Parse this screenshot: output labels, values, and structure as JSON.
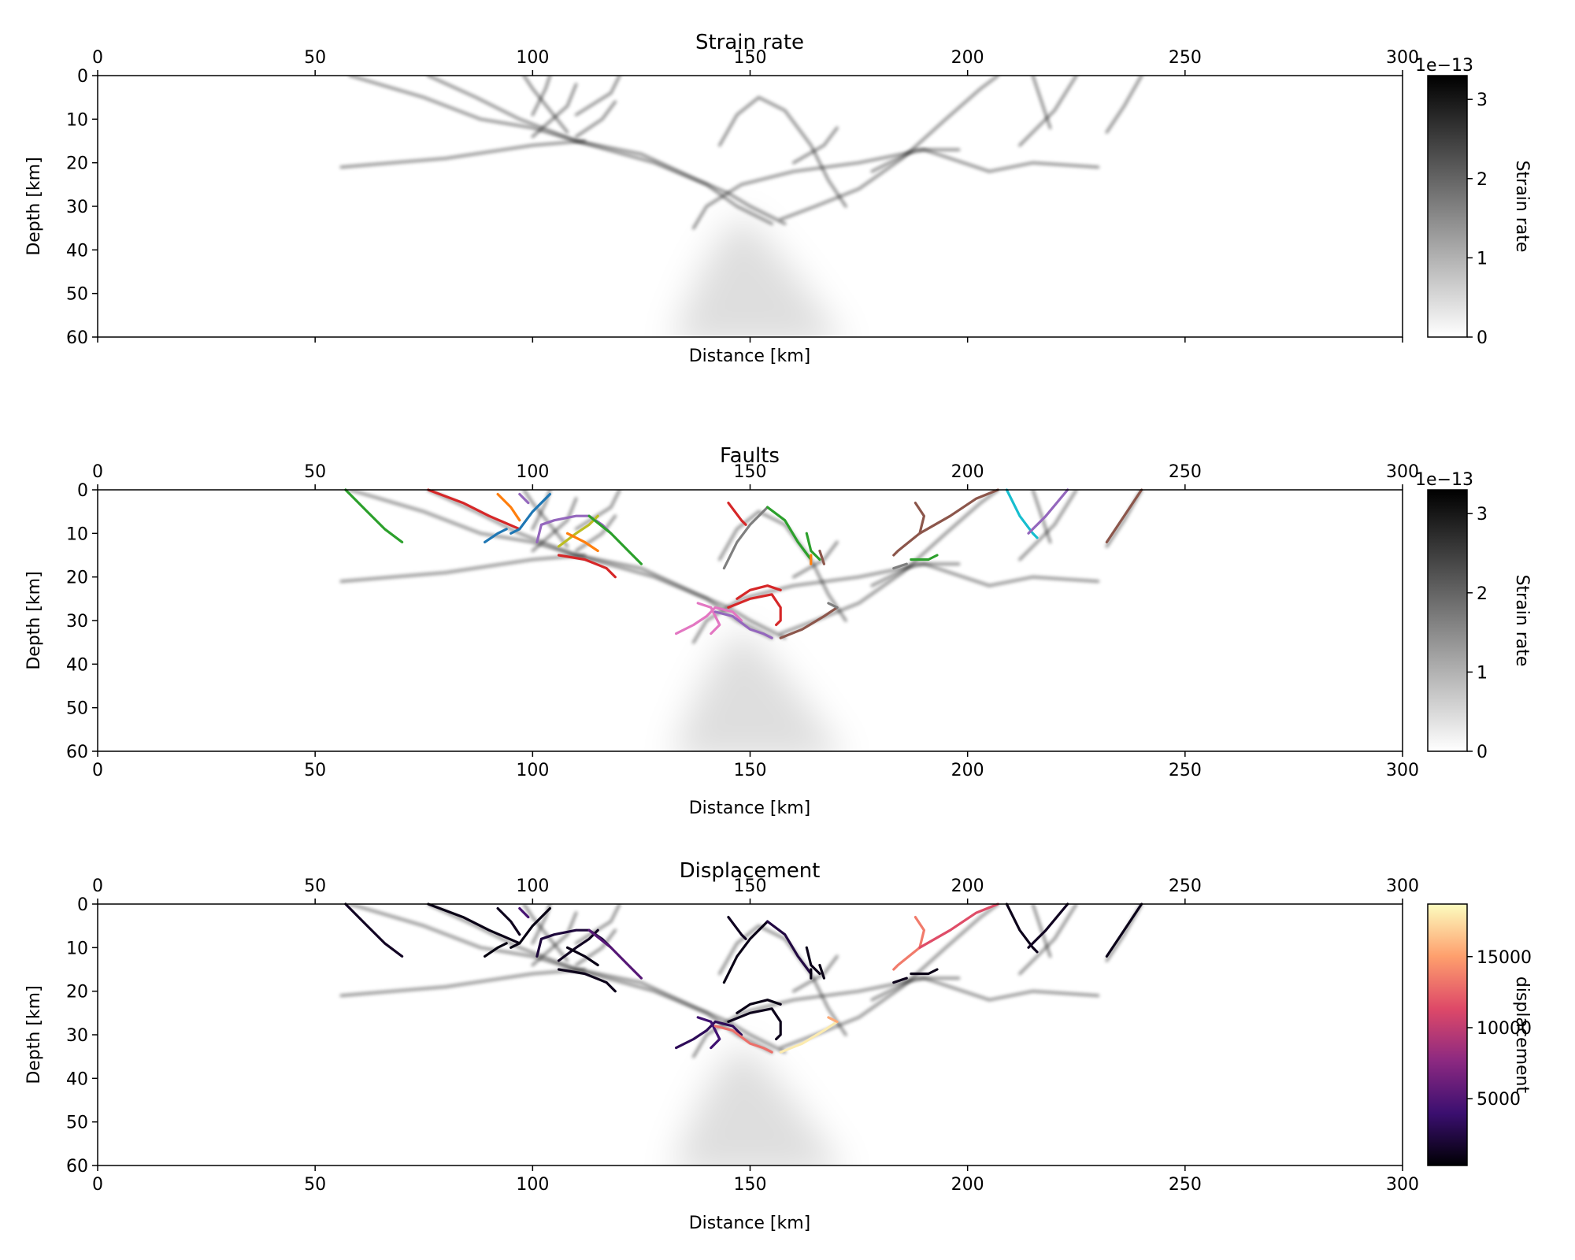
{
  "chart_data": [
    {
      "type": "heatmap",
      "title": "Strain rate",
      "xlabel": "Distance [km]",
      "ylabel": "Depth [km]",
      "xlim": [
        0,
        300
      ],
      "ylim": [
        60,
        0
      ],
      "xticks": [
        0,
        50,
        100,
        150,
        200,
        250,
        300
      ],
      "yticks": [
        0,
        10,
        20,
        30,
        40,
        50,
        60
      ],
      "colorbar": {
        "label": "Strain rate",
        "offset_text": "1e−13",
        "ticks": [
          0,
          1,
          2,
          3
        ],
        "range": [
          0,
          3.3
        ],
        "cmap": "Greys"
      },
      "strain_bands": [
        [
          [
            58,
            0
          ],
          [
            75,
            5
          ],
          [
            88,
            10
          ],
          [
            100,
            12
          ],
          [
            110,
            15
          ],
          [
            125,
            18
          ],
          [
            138,
            24
          ],
          [
            145,
            27
          ],
          [
            150,
            30
          ],
          [
            158,
            34
          ]
        ],
        [
          [
            76,
            0
          ],
          [
            87,
            5
          ],
          [
            97,
            10
          ],
          [
            110,
            15
          ],
          [
            128,
            20
          ],
          [
            140,
            25
          ],
          [
            147,
            30
          ],
          [
            155,
            34
          ]
        ],
        [
          [
            98,
            0
          ],
          [
            100,
            3
          ],
          [
            108,
            13
          ]
        ],
        [
          [
            104,
            0
          ],
          [
            103,
            3
          ],
          [
            100,
            9
          ]
        ],
        [
          [
            110,
            2
          ],
          [
            108,
            7
          ],
          [
            100,
            14
          ]
        ],
        [
          [
            120,
            0
          ],
          [
            118,
            4
          ],
          [
            110,
            9
          ]
        ],
        [
          [
            56,
            21
          ],
          [
            80,
            19
          ],
          [
            100,
            16
          ],
          [
            112,
            15
          ]
        ],
        [
          [
            119,
            6
          ],
          [
            116,
            10
          ],
          [
            110,
            14
          ]
        ],
        [
          [
            143,
            16
          ],
          [
            147,
            9
          ],
          [
            152,
            5
          ],
          [
            158,
            8
          ],
          [
            164,
            16
          ],
          [
            168,
            24
          ],
          [
            172,
            30
          ]
        ],
        [
          [
            137,
            35
          ],
          [
            140,
            30
          ],
          [
            148,
            25
          ],
          [
            160,
            22
          ],
          [
            175,
            20
          ],
          [
            190,
            17
          ],
          [
            205,
            22
          ],
          [
            215,
            20
          ],
          [
            230,
            21
          ]
        ],
        [
          [
            157,
            33
          ],
          [
            165,
            30
          ],
          [
            175,
            26
          ],
          [
            185,
            19
          ],
          [
            195,
            10
          ],
          [
            203,
            3
          ],
          [
            207,
            0
          ]
        ],
        [
          [
            178,
            22
          ],
          [
            188,
            17
          ],
          [
            198,
            17
          ]
        ],
        [
          [
            215,
            0
          ],
          [
            217,
            6
          ],
          [
            219,
            12
          ]
        ],
        [
          [
            225,
            0
          ],
          [
            220,
            8
          ],
          [
            212,
            16
          ]
        ],
        [
          [
            240,
            0
          ],
          [
            236,
            7
          ],
          [
            232,
            13
          ]
        ],
        [
          [
            160,
            20
          ],
          [
            167,
            16
          ],
          [
            170,
            12
          ]
        ]
      ]
    },
    {
      "type": "heatmap",
      "title": "Faults",
      "xlabel": "Distance [km]",
      "ylabel": "Depth [km]",
      "xlim": [
        0,
        300
      ],
      "ylim": [
        60,
        0
      ],
      "xticks": [
        0,
        50,
        100,
        150,
        200,
        250,
        300
      ],
      "yticks": [
        0,
        10,
        20,
        30,
        40,
        50,
        60
      ],
      "colorbar": {
        "label": "Strain rate",
        "offset_text": "1e−13",
        "ticks": [
          0,
          1,
          2,
          3
        ],
        "range": [
          0,
          3.3
        ],
        "cmap": "Greys"
      },
      "faults": [
        {
          "color": "#2ca02c",
          "points": [
            [
              57,
              0
            ],
            [
              62,
              5
            ],
            [
              66,
              9
            ],
            [
              70,
              12
            ]
          ]
        },
        {
          "color": "#d62728",
          "points": [
            [
              76,
              0
            ],
            [
              84,
              3
            ],
            [
              90,
              6
            ],
            [
              97,
              9
            ]
          ]
        },
        {
          "color": "#ff7f0e",
          "points": [
            [
              92,
              1
            ],
            [
              95,
              4
            ],
            [
              97,
              7
            ]
          ]
        },
        {
          "color": "#1f77b4",
          "points": [
            [
              104,
              1
            ],
            [
              100,
              5
            ],
            [
              97,
              9
            ],
            [
              95,
              10
            ]
          ]
        },
        {
          "color": "#1f77b4",
          "points": [
            [
              89,
              12
            ],
            [
              92,
              10
            ],
            [
              94,
              9
            ]
          ]
        },
        {
          "color": "#9467bd",
          "points": [
            [
              97,
              1
            ],
            [
              99,
              3
            ]
          ]
        },
        {
          "color": "#9467bd",
          "points": [
            [
              101,
              12
            ],
            [
              102,
              8
            ],
            [
              105,
              7
            ],
            [
              110,
              6
            ],
            [
              113,
              6
            ],
            [
              116,
              8
            ],
            [
              118,
              10
            ]
          ]
        },
        {
          "color": "#bcbd22",
          "points": [
            [
              106,
              13
            ],
            [
              110,
              10
            ],
            [
              113,
              8
            ],
            [
              115,
              6
            ]
          ]
        },
        {
          "color": "#ff7f0e",
          "points": [
            [
              108,
              10
            ],
            [
              112,
              12
            ],
            [
              115,
              14
            ]
          ]
        },
        {
          "color": "#2ca02c",
          "points": [
            [
              113,
              6
            ],
            [
              118,
              10
            ],
            [
              122,
              14
            ],
            [
              125,
              17
            ]
          ]
        },
        {
          "color": "#d62728",
          "points": [
            [
              106,
              15
            ],
            [
              112,
              16
            ],
            [
              117,
              18
            ],
            [
              119,
              20
            ]
          ]
        },
        {
          "color": "#d62728",
          "points": [
            [
              145,
              3
            ],
            [
              148,
              7
            ],
            [
              149,
              8
            ]
          ]
        },
        {
          "color": "#7f7f7f",
          "points": [
            [
              144,
              18
            ],
            [
              147,
              12
            ],
            [
              150,
              8
            ],
            [
              154,
              4
            ]
          ]
        },
        {
          "color": "#2ca02c",
          "points": [
            [
              154,
              4
            ],
            [
              158,
              7
            ],
            [
              161,
              12
            ],
            [
              164,
              16
            ]
          ]
        },
        {
          "color": "#2ca02c",
          "points": [
            [
              163,
              10
            ],
            [
              164,
              14
            ],
            [
              166,
              16
            ]
          ]
        },
        {
          "color": "#ff7f0e",
          "points": [
            [
              164,
              15
            ],
            [
              164,
              17
            ]
          ]
        },
        {
          "color": "#8c564b",
          "points": [
            [
              166,
              14
            ],
            [
              167,
              17
            ]
          ]
        },
        {
          "color": "#8c564b",
          "points": [
            [
              188,
              3
            ],
            [
              190,
              6
            ],
            [
              189,
              10
            ],
            [
              184,
              14
            ],
            [
              183,
              15
            ]
          ]
        },
        {
          "color": "#8c564b",
          "points": [
            [
              189,
              10
            ],
            [
              196,
              6
            ],
            [
              202,
              2
            ],
            [
              207,
              0
            ]
          ]
        },
        {
          "color": "#7f7f7f",
          "points": [
            [
              183,
              18
            ],
            [
              186,
              17
            ]
          ]
        },
        {
          "color": "#2ca02c",
          "points": [
            [
              187,
              16
            ],
            [
              191,
              16
            ],
            [
              193,
              15
            ]
          ]
        },
        {
          "color": "#17becf",
          "points": [
            [
              209,
              0
            ],
            [
              212,
              6
            ],
            [
              215,
              10
            ],
            [
              216,
              11
            ]
          ]
        },
        {
          "color": "#9467bd",
          "points": [
            [
              223,
              0
            ],
            [
              218,
              6
            ],
            [
              214,
              10
            ]
          ]
        },
        {
          "color": "#8c564b",
          "points": [
            [
              240,
              0
            ],
            [
              236,
              6
            ],
            [
              232,
              12
            ]
          ]
        },
        {
          "color": "#d62728",
          "points": [
            [
              145,
              27
            ],
            [
              150,
              25
            ],
            [
              155,
              24
            ],
            [
              157,
              27
            ],
            [
              157,
              30
            ],
            [
              156,
              31
            ]
          ]
        },
        {
          "color": "#d62728",
          "points": [
            [
              147,
              25
            ],
            [
              150,
              23
            ],
            [
              154,
              22
            ],
            [
              157,
              23
            ]
          ]
        },
        {
          "color": "#e377c2",
          "points": [
            [
              133,
              33
            ],
            [
              137,
              31
            ],
            [
              140,
              29
            ],
            [
              142,
              27
            ],
            [
              146,
              28
            ],
            [
              148,
              30
            ]
          ]
        },
        {
          "color": "#e377c2",
          "points": [
            [
              138,
              26
            ],
            [
              141,
              27
            ],
            [
              143,
              31
            ],
            [
              141,
              33
            ]
          ]
        },
        {
          "color": "#9467bd",
          "points": [
            [
              142,
              28
            ],
            [
              146,
              29
            ],
            [
              150,
              32
            ],
            [
              153,
              33
            ],
            [
              155,
              34
            ]
          ]
        },
        {
          "color": "#8c564b",
          "points": [
            [
              157,
              34
            ],
            [
              162,
              32
            ],
            [
              167,
              29
            ],
            [
              170,
              27
            ]
          ]
        },
        {
          "color": "#7f7f7f",
          "points": [
            [
              168,
              26
            ],
            [
              170,
              27
            ]
          ]
        }
      ]
    },
    {
      "type": "heatmap",
      "title": "Displacement",
      "xlabel": "Distance [km]",
      "ylabel": "Depth [km]",
      "xlim": [
        0,
        300
      ],
      "ylim": [
        60,
        0
      ],
      "xticks": [
        0,
        50,
        100,
        150,
        200,
        250,
        300
      ],
      "yticks": [
        0,
        10,
        20,
        30,
        40,
        50,
        60
      ],
      "colorbar": {
        "label": "displacement",
        "ticks": [
          5000,
          10000,
          15000
        ],
        "range": [
          300,
          18700
        ],
        "cmap": "magma"
      },
      "fault_displacement": [
        1400,
        900,
        1200,
        800,
        700,
        4500,
        2200,
        1300,
        900,
        5200,
        1100,
        1300,
        900,
        2400,
        1000,
        800,
        900,
        13500,
        11500,
        1100,
        900,
        1100,
        1300,
        1000,
        1100,
        900,
        3200,
        4200,
        13000,
        18000,
        15500
      ]
    }
  ]
}
